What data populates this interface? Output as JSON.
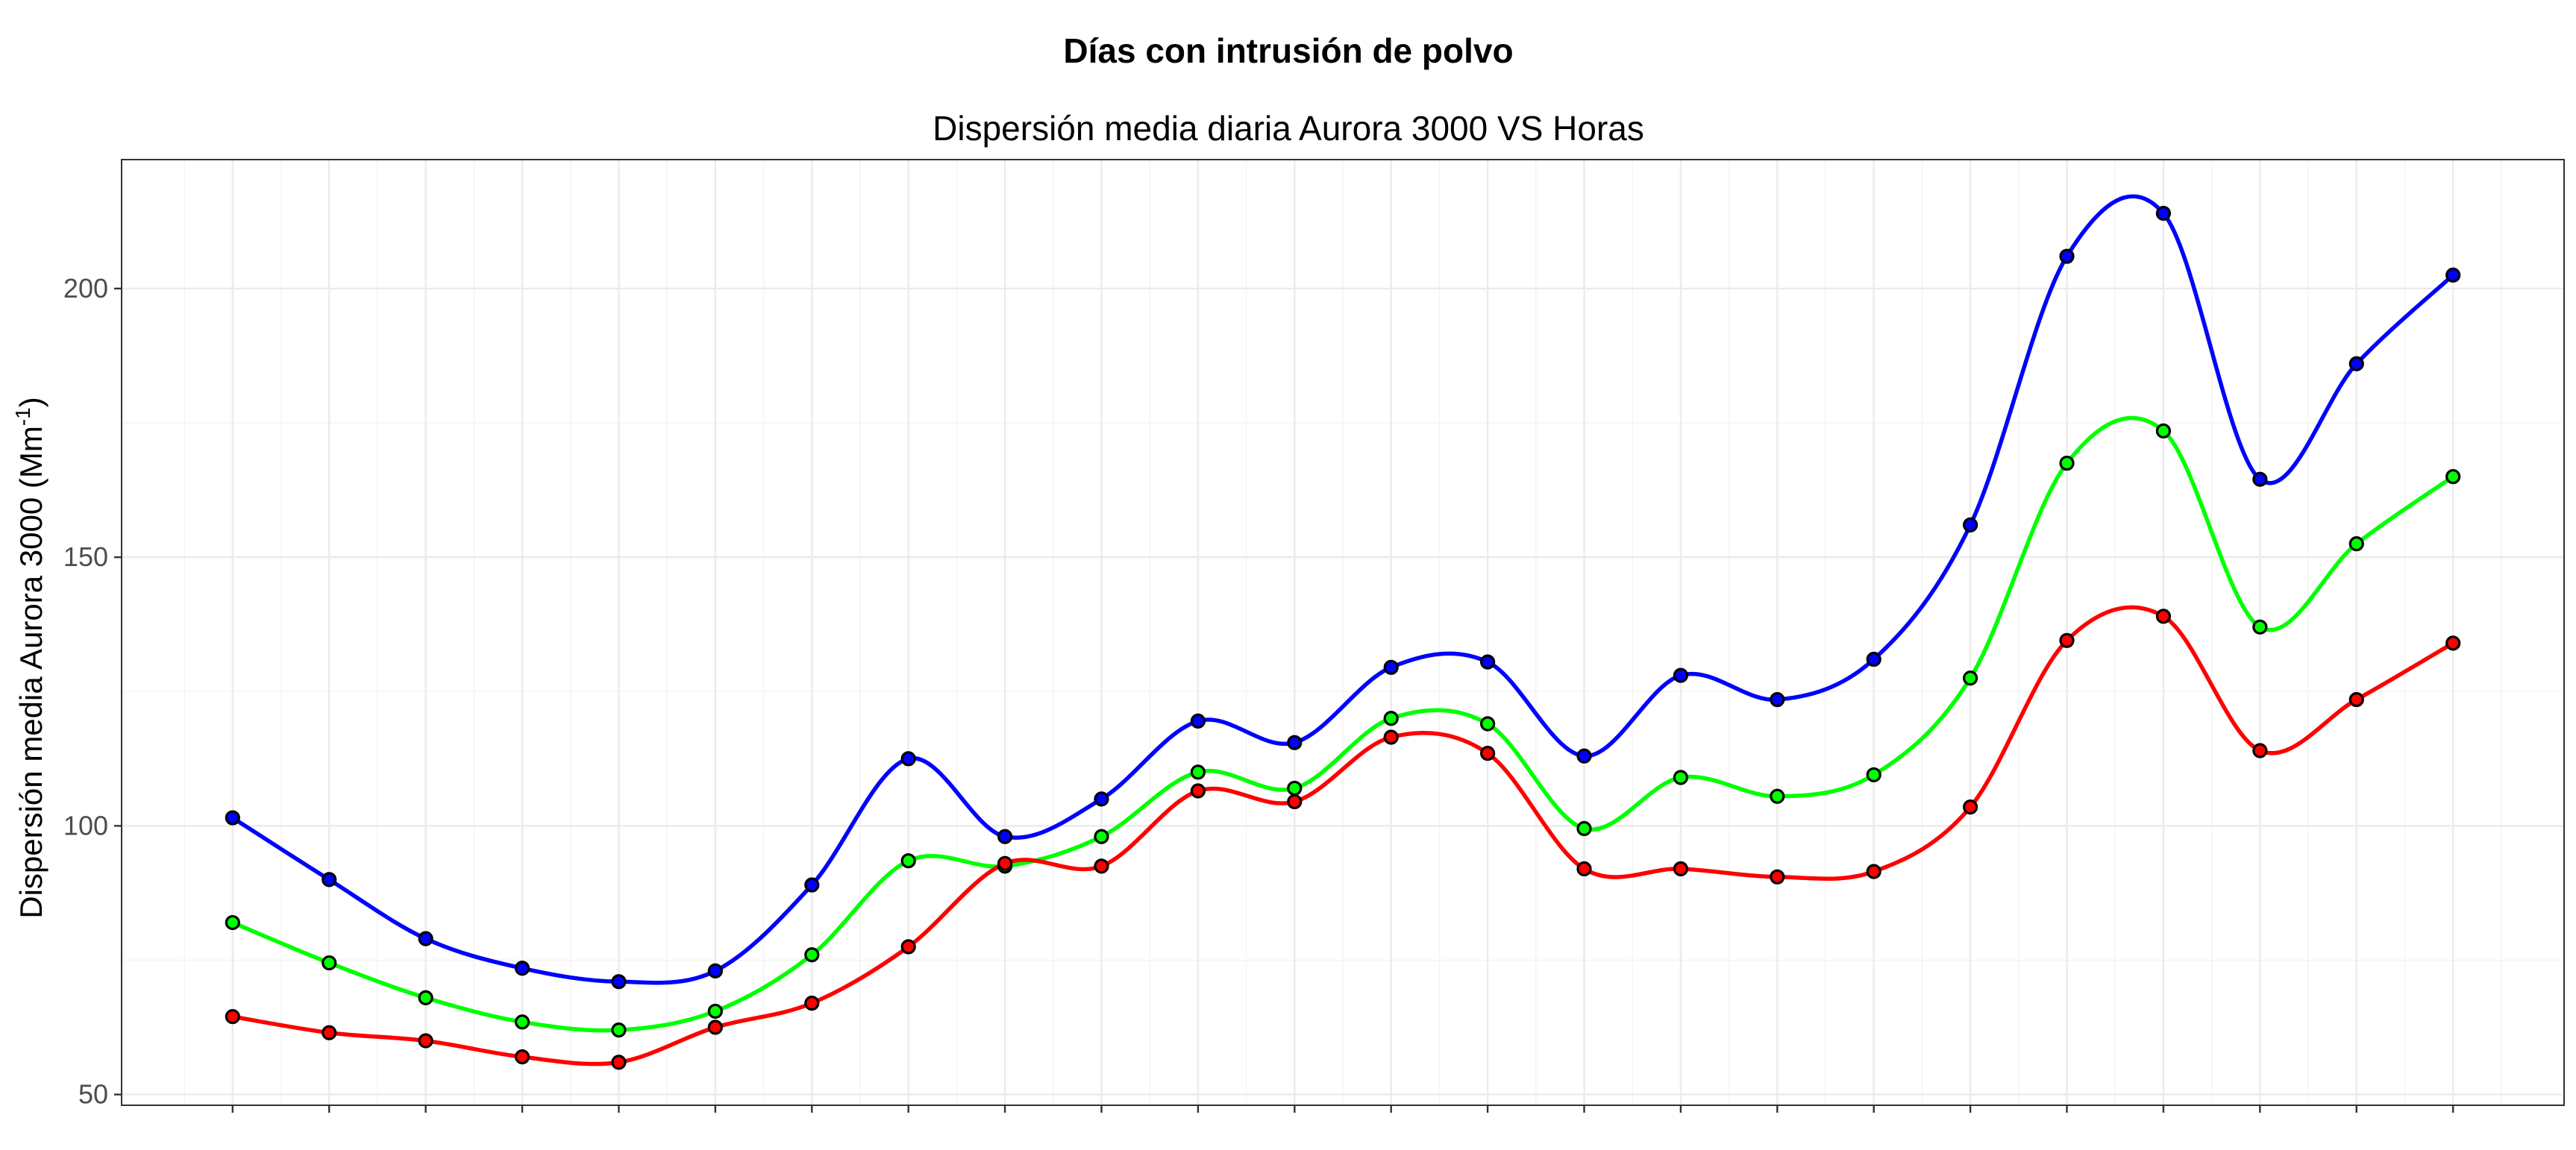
{
  "chart_data": {
    "type": "line",
    "title": "Días con intrusión de polvo",
    "subtitle": "Dispersión media diaria Aurora 3000 VS Horas",
    "ylabel_prefix": "Dispersión media Aurora 3000 (Mm",
    "ylabel_sup": "-1",
    "ylabel_suffix": ")",
    "xlabel": "",
    "ylim": [
      48,
      224
    ],
    "yticks": [
      50,
      100,
      150,
      200
    ],
    "x": [
      0,
      1,
      2,
      3,
      4,
      5,
      6,
      7,
      8,
      9,
      10,
      11,
      12,
      13,
      14,
      15,
      16,
      17,
      18,
      19,
      20,
      21,
      22,
      23
    ],
    "xlim": [
      -1.15,
      24.15
    ],
    "grid": true,
    "legend": "none",
    "series": [
      {
        "color": "#0000ff",
        "values": [
          101.5,
          90,
          79,
          73.5,
          71,
          73,
          89,
          112.5,
          98,
          105,
          119.5,
          115.5,
          129.5,
          130.5,
          113,
          128,
          123.5,
          131,
          156,
          206,
          214,
          164.5,
          186,
          202.5
        ]
      },
      {
        "color": "#00ff00",
        "values": [
          82,
          74.5,
          68,
          63.5,
          62,
          65.5,
          76,
          93.5,
          92.5,
          98,
          110,
          107,
          120,
          119,
          99.5,
          109,
          105.5,
          109.5,
          127.5,
          167.5,
          173.5,
          137,
          152.5,
          165
        ]
      },
      {
        "color": "#ff0000",
        "values": [
          64.5,
          61.5,
          60,
          57,
          56,
          62.5,
          67,
          77.5,
          93,
          92.5,
          106.5,
          104.5,
          116.5,
          113.5,
          92,
          92,
          90.5,
          91.5,
          103.5,
          134.5,
          139,
          114,
          123.5,
          134
        ]
      }
    ]
  }
}
